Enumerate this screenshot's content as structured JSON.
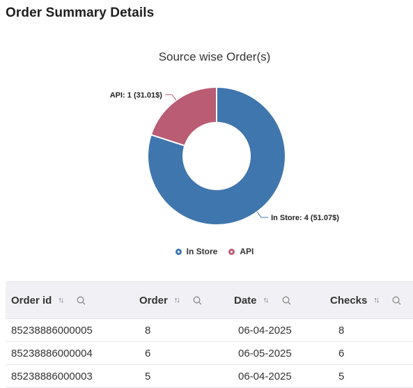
{
  "page": {
    "title": "Order Summary Details"
  },
  "chart_data": {
    "type": "donut",
    "title": "Source wise Order(s)",
    "slices": [
      {
        "name": "In Store",
        "value": 4,
        "label": "In Store: 4 (51.07$)",
        "color": "#3f76ad"
      },
      {
        "name": "API",
        "value": 1,
        "label": "API: 1 (31.01$)",
        "color": "#b95c74"
      }
    ],
    "legend": [
      "In Store",
      "API"
    ],
    "legend_position": "bottom"
  },
  "table": {
    "columns": [
      {
        "label": "Order id",
        "sort_icon": "sort-icon",
        "search_icon": "search-icon"
      },
      {
        "label": "Order",
        "sort_icon": "sort-icon",
        "search_icon": "search-icon"
      },
      {
        "label": "Date",
        "sort_icon": "sort-icon",
        "search_icon": "search-icon"
      },
      {
        "label": "Checks",
        "sort_icon": "sort-icon",
        "search_icon": "search-icon"
      }
    ],
    "rows": [
      [
        "85238886000005",
        "8",
        "06-04-2025",
        "8"
      ],
      [
        "85238886000004",
        "6",
        "06-05-2025",
        "6"
      ],
      [
        "85238886000003",
        "5",
        "06-04-2025",
        "5"
      ]
    ]
  }
}
